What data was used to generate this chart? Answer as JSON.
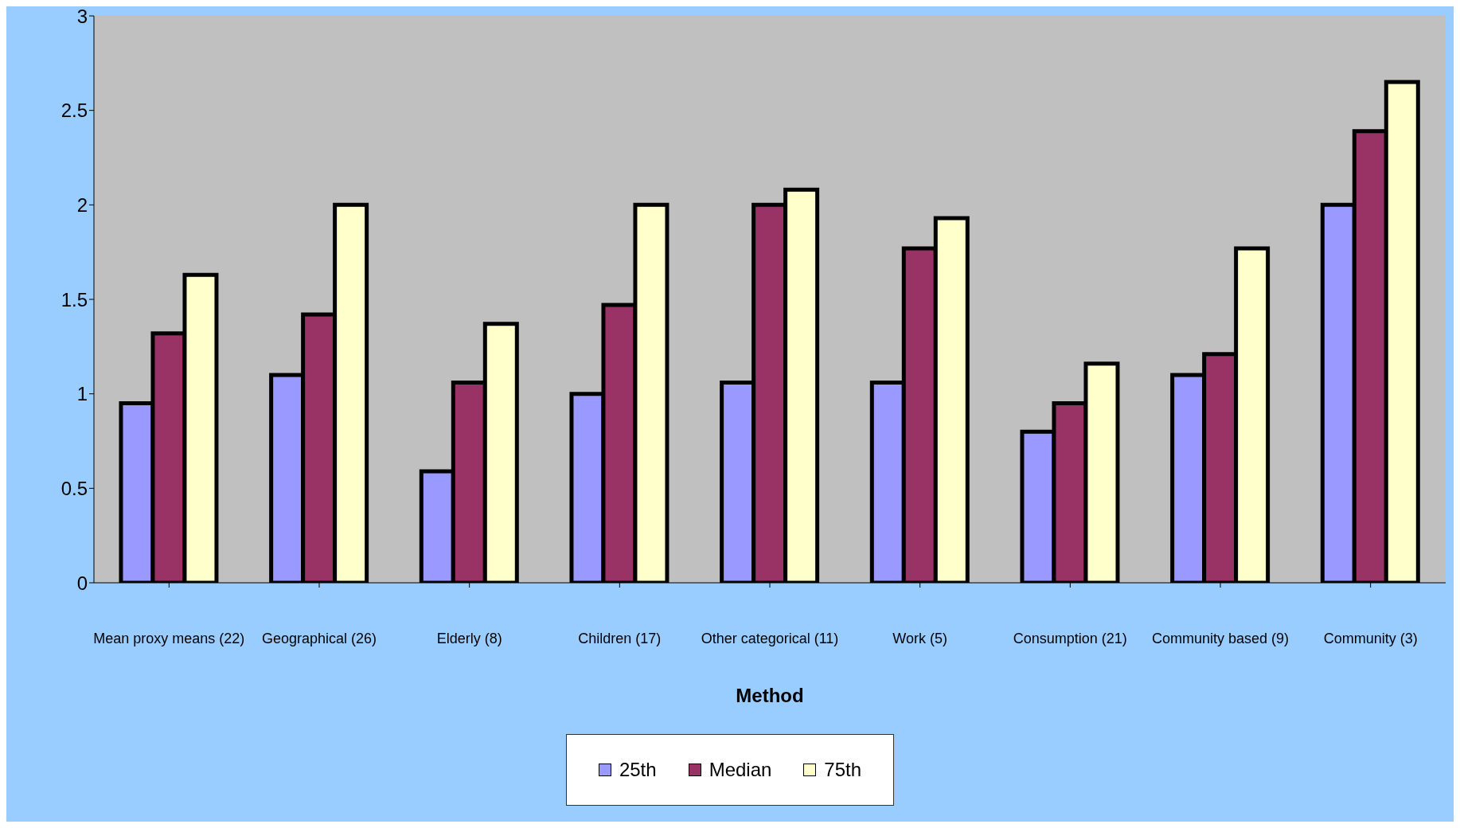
{
  "chart_data": {
    "type": "bar",
    "xlabel": "Method",
    "categories": [
      "Mean proxy means (22)",
      "Geographical (26)",
      "Elderly (8)",
      "Children (17)",
      "Other categorical (11)",
      "Work (5)",
      "Consumption (21)",
      "Community based (9)",
      "Community (3)"
    ],
    "series": [
      {
        "name": "25th",
        "color": "#9999ff",
        "values": [
          0.95,
          1.1,
          0.59,
          1.0,
          1.06,
          1.06,
          0.8,
          1.1,
          2.0
        ]
      },
      {
        "name": "Median",
        "color": "#993366",
        "values": [
          1.32,
          1.42,
          1.06,
          1.47,
          2.0,
          1.77,
          0.95,
          1.21,
          2.39
        ]
      },
      {
        "name": "75th",
        "color": "#ffffcc",
        "values": [
          1.63,
          2.0,
          1.37,
          2.0,
          2.08,
          1.93,
          1.16,
          1.77,
          2.65
        ]
      }
    ],
    "ylim": [
      0,
      3
    ],
    "yticks": [
      0,
      {
        "value": 0.5,
        "label": "0.5"
      },
      1,
      {
        "value": 1.5,
        "label": "1.5"
      },
      2,
      {
        "value": 2.5,
        "label": "2.5"
      },
      3
    ],
    "legend": "bottom"
  }
}
